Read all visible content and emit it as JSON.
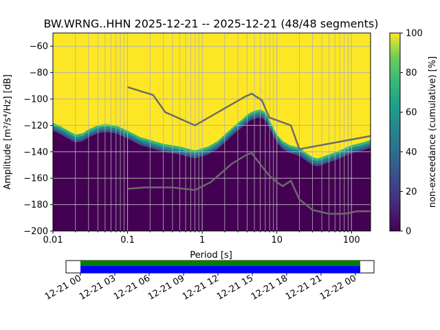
{
  "chart_data": {
    "type": "heatmap",
    "title": "BW.WRNG..HHN   2025-12-21 -- 2025-12-21  (48/48 segments)",
    "xlabel": "Period [s]",
    "ylabel": "Amplitude [m²/s⁴/Hz] [dB]",
    "xscale": "log",
    "xlim": [
      0.01,
      180
    ],
    "ylim": [
      -200,
      -50
    ],
    "xticks": [
      {
        "value": 0.01,
        "label": "0.01"
      },
      {
        "value": 0.1,
        "label": "0.1"
      },
      {
        "value": 1,
        "label": "1"
      },
      {
        "value": 10,
        "label": "10"
      },
      {
        "value": 100,
        "label": "100"
      }
    ],
    "yticks": [
      {
        "value": -60,
        "label": "−60"
      },
      {
        "value": -80,
        "label": "−80"
      },
      {
        "value": -100,
        "label": "−100"
      },
      {
        "value": -120,
        "label": "−120"
      },
      {
        "value": -140,
        "label": "−140"
      },
      {
        "value": -160,
        "label": "−160"
      },
      {
        "value": -180,
        "label": "−180"
      },
      {
        "value": -200,
        "label": "−200"
      }
    ],
    "colorbar": {
      "label": "non-exceedance (cumulative) [%]",
      "range": [
        0,
        100
      ],
      "ticks": [
        "0",
        "20",
        "40",
        "60",
        "80",
        "100"
      ]
    },
    "psd_edge": [
      [
        0.01,
        -124
      ],
      [
        0.012,
        -126
      ],
      [
        0.015,
        -129
      ],
      [
        0.02,
        -133
      ],
      [
        0.025,
        -132
      ],
      [
        0.03,
        -129
      ],
      [
        0.04,
        -126
      ],
      [
        0.05,
        -125
      ],
      [
        0.07,
        -126
      ],
      [
        0.1,
        -130
      ],
      [
        0.15,
        -135
      ],
      [
        0.2,
        -137
      ],
      [
        0.3,
        -140
      ],
      [
        0.5,
        -142
      ],
      [
        0.8,
        -145
      ],
      [
        1.2,
        -142
      ],
      [
        1.6,
        -138
      ],
      [
        2.0,
        -133
      ],
      [
        2.5,
        -128
      ],
      [
        3.0,
        -124
      ],
      [
        3.5,
        -121
      ],
      [
        4.0,
        -118
      ],
      [
        4.5,
        -116
      ],
      [
        5.0,
        -115
      ],
      [
        6.0,
        -114
      ],
      [
        7.0,
        -116
      ],
      [
        8.0,
        -122
      ],
      [
        9.0,
        -128
      ],
      [
        10,
        -133
      ],
      [
        12,
        -138
      ],
      [
        15,
        -141
      ],
      [
        20,
        -143
      ],
      [
        25,
        -147
      ],
      [
        30,
        -150
      ],
      [
        35,
        -151
      ],
      [
        40,
        -150
      ],
      [
        50,
        -148
      ],
      [
        70,
        -145
      ],
      [
        100,
        -141
      ],
      [
        140,
        -139
      ],
      [
        180,
        -137
      ]
    ],
    "nhnm": [
      [
        0.1,
        -91
      ],
      [
        0.22,
        -97
      ],
      [
        0.32,
        -110
      ],
      [
        0.8,
        -120
      ],
      [
        3.8,
        -98
      ],
      [
        4.6,
        -96
      ],
      [
        6.3,
        -101
      ],
      [
        7.9,
        -114
      ],
      [
        15.4,
        -120
      ],
      [
        20,
        -138
      ],
      [
        180,
        -128
      ]
    ],
    "nlnm": [
      [
        0.1,
        -168
      ],
      [
        0.17,
        -167
      ],
      [
        0.4,
        -167
      ],
      [
        0.8,
        -169
      ],
      [
        1.3,
        -163
      ],
      [
        2.5,
        -149
      ],
      [
        4.0,
        -142
      ],
      [
        4.6,
        -141
      ],
      [
        6.3,
        -151
      ],
      [
        7.9,
        -158
      ],
      [
        10,
        -163
      ],
      [
        12,
        -166
      ],
      [
        15.4,
        -162
      ],
      [
        20,
        -176
      ],
      [
        30,
        -184
      ],
      [
        50,
        -187
      ],
      [
        80,
        -187
      ],
      [
        120,
        -185
      ],
      [
        180,
        -185
      ]
    ],
    "timeline": {
      "ticks": [
        "12-21 00",
        "12-21 03",
        "12-21 06",
        "12-21 09",
        "12-21 12",
        "12-21 15",
        "12-21 18",
        "12-21 21",
        "12-22 00"
      ],
      "data_coverage_color": "#008000",
      "segment_color": "#0000ff"
    }
  }
}
